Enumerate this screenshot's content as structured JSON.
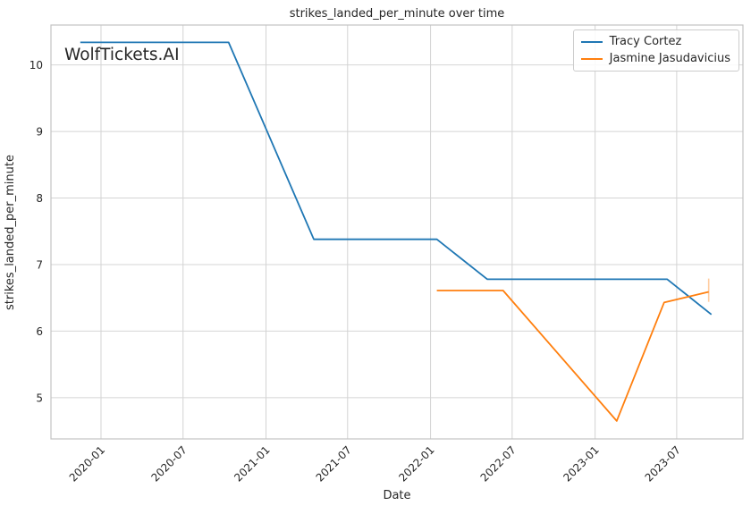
{
  "chart_data": {
    "type": "line",
    "title": "strikes_landed_per_minute over time",
    "xlabel": "Date",
    "ylabel": "strikes_landed_per_minute",
    "watermark": "WolfTickets.AI",
    "grid": true,
    "legend_position": "upper right",
    "x_tick_labels": [
      "2020-01",
      "2020-07",
      "2021-01",
      "2021-07",
      "2022-01",
      "2022-07",
      "2023-01",
      "2023-07"
    ],
    "x_tick_dates": [
      "2020-01-01",
      "2020-07-01",
      "2021-01-01",
      "2021-07-01",
      "2022-01-01",
      "2022-07-01",
      "2023-01-01",
      "2023-07-01"
    ],
    "y_ticks": [
      5,
      6,
      7,
      8,
      9,
      10
    ],
    "x_range": [
      "2019-09-12",
      "2023-11-25"
    ],
    "y_range": [
      4.38,
      10.6
    ],
    "series": [
      {
        "name": "Tracy Cortez",
        "color": "#1f77b4",
        "points": [
          {
            "date": "2019-11-16",
            "value": 10.34
          },
          {
            "date": "2020-10-10",
            "value": 10.34
          },
          {
            "date": "2021-04-17",
            "value": 7.38
          },
          {
            "date": "2022-01-15",
            "value": 7.38
          },
          {
            "date": "2022-05-07",
            "value": 6.78
          },
          {
            "date": "2023-06-10",
            "value": 6.78
          },
          {
            "date": "2023-09-16",
            "value": 6.25
          }
        ]
      },
      {
        "name": "Jasmine Jasudavicius",
        "color": "#ff7f0e",
        "points": [
          {
            "date": "2022-01-15",
            "value": 6.61
          },
          {
            "date": "2022-06-11",
            "value": 6.61
          },
          {
            "date": "2023-02-18",
            "value": 4.65
          },
          {
            "date": "2023-06-03",
            "value": 6.43
          },
          {
            "date": "2023-09-10",
            "value": 6.59
          }
        ],
        "errorbar_last": {
          "low": 6.44,
          "high": 6.79
        }
      }
    ]
  }
}
